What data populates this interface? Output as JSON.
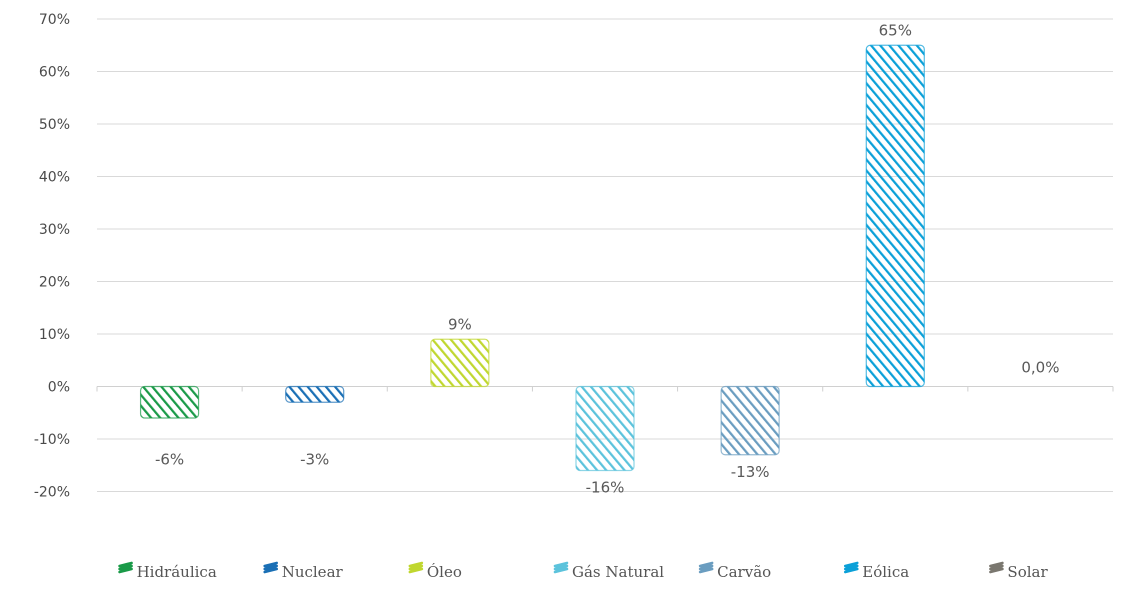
{
  "chart_data": {
    "type": "bar",
    "categories": [
      "Hidráulica",
      "Nuclear",
      "Óleo",
      "Gás Natural",
      "Carvão",
      "Eólica",
      "Solar"
    ],
    "values": [
      -6,
      -3,
      9,
      -16,
      -13,
      65,
      0
    ],
    "data_labels": [
      "-6%",
      "-3%",
      "9%",
      "-16%",
      "-13%",
      "65%",
      "0,0%"
    ],
    "colors": [
      "#1a9a48",
      "#1a6fb5",
      "#c0d72f",
      "#5cc3dc",
      "#6a9dc0",
      "#0ba0d8",
      "#7a776f"
    ],
    "yticks": [
      70,
      60,
      50,
      40,
      30,
      20,
      10,
      0,
      -10,
      -20
    ],
    "ytick_labels": [
      "70%",
      "60%",
      "50%",
      "40%",
      "30%",
      "20%",
      "10%",
      "0%",
      "-10%",
      "-20%"
    ],
    "ylim": [
      -20,
      70
    ],
    "grid": true,
    "legend": "bottom",
    "title": "",
    "xlabel": "",
    "ylabel": ""
  }
}
